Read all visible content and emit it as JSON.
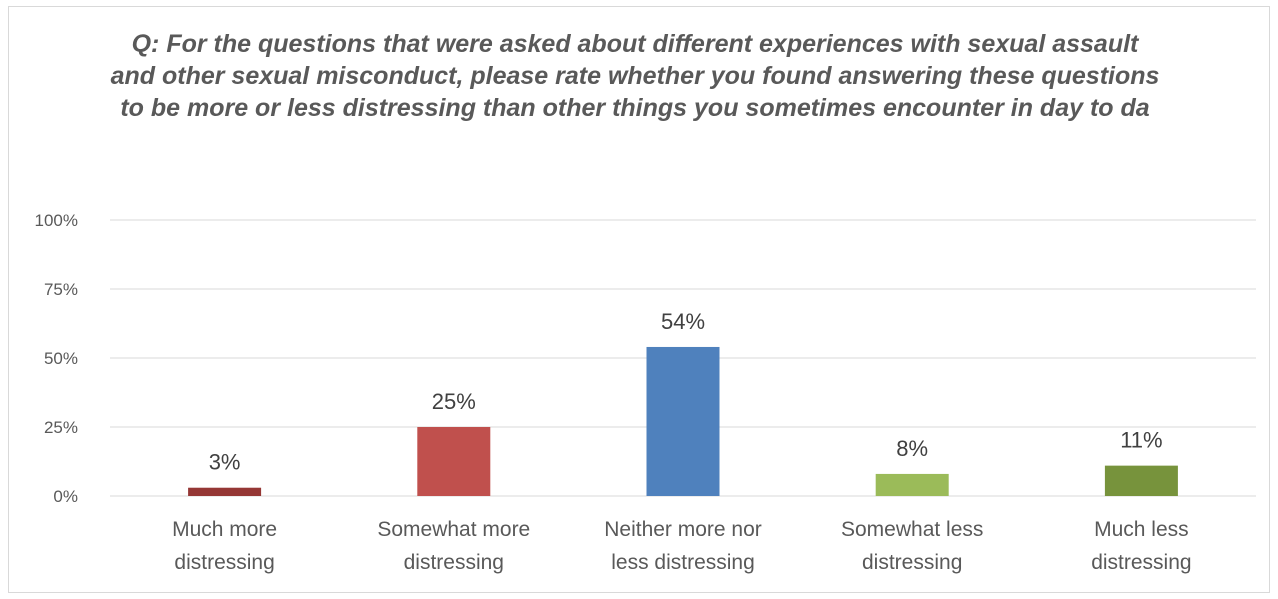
{
  "chart_data": {
    "type": "bar",
    "title": "Q: For the questions that were asked about different experiences with sexual assault and other sexual misconduct, please rate whether you found answering these questions to be more or less distressing than other things you sometimes encounter in day to da",
    "xlabel": "",
    "ylabel": "",
    "categories": [
      [
        "Much more",
        "distressing"
      ],
      [
        "Somewhat more",
        "distressing"
      ],
      [
        "Neither more nor",
        "less distressing"
      ],
      [
        "Somewhat less",
        "distressing"
      ],
      [
        "Much less",
        "distressing"
      ]
    ],
    "values": [
      3,
      25,
      54,
      8,
      11
    ],
    "data_labels": [
      "3%",
      "25%",
      "54%",
      "8%",
      "11%"
    ],
    "colors": [
      "#953735",
      "#c0504d",
      "#4f81bd",
      "#9bbb59",
      "#77933c"
    ],
    "ylim": [
      0,
      100
    ],
    "yticks": [
      0,
      25,
      50,
      75,
      100
    ],
    "ytick_labels": [
      "0%",
      "25%",
      "50%",
      "75%",
      "100%"
    ],
    "grid": true,
    "legend": "none"
  }
}
